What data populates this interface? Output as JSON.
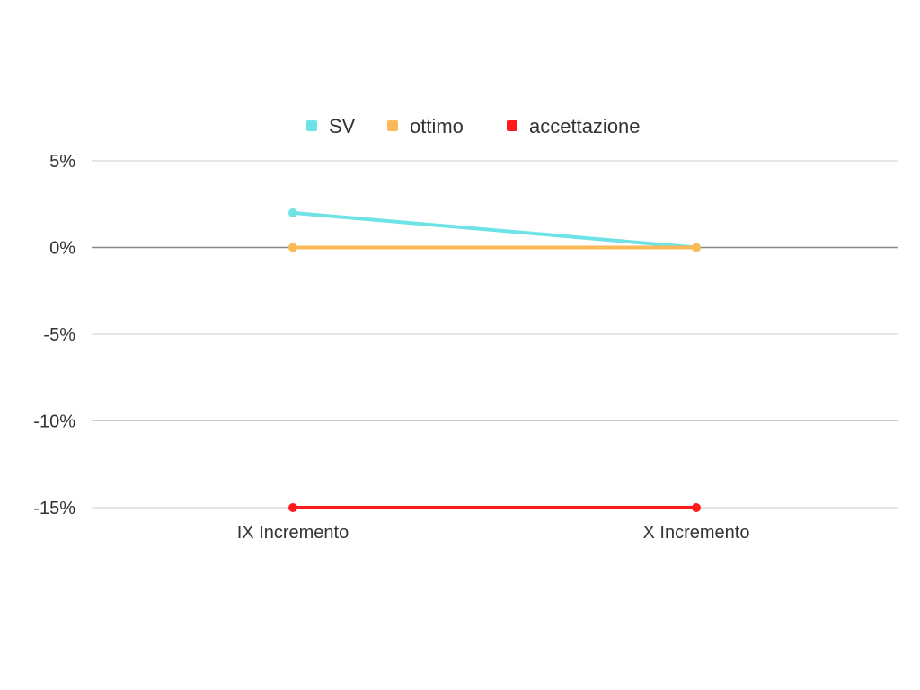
{
  "chart_data": {
    "type": "line",
    "categories": [
      "IX Incremento",
      "X Incremento"
    ],
    "series": [
      {
        "name": "SV",
        "values": [
          2,
          0
        ],
        "color": "#6de3e6"
      },
      {
        "name": "ottimo",
        "values": [
          0,
          0
        ],
        "color": "#fbb957"
      },
      {
        "name": "accettazione",
        "values": [
          -15,
          -15
        ],
        "color": "#ff1a1a"
      }
    ],
    "ylim": [
      -15,
      5
    ],
    "yticks": [
      5,
      0,
      -5,
      -10,
      -15
    ],
    "ytick_labels": [
      "5%",
      "0%",
      "-5%",
      "-10%",
      "-15%"
    ],
    "legend_position": "top-center",
    "grid": true,
    "title": "",
    "xlabel": "",
    "ylabel": ""
  }
}
